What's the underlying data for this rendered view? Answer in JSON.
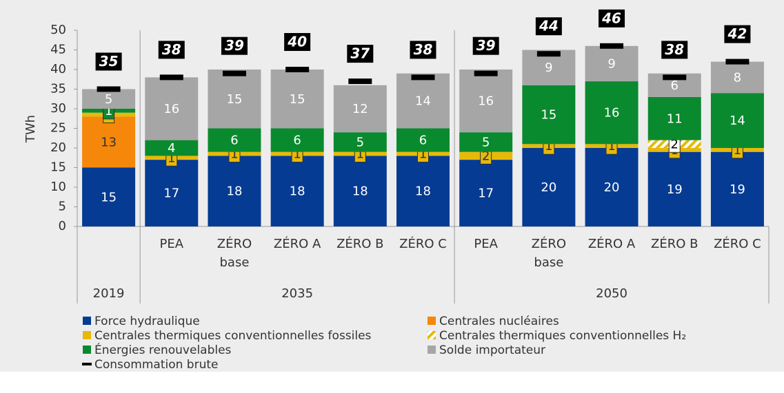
{
  "chart_data": {
    "type": "stacked_bar",
    "y_label": "TWh",
    "ylim": [
      0,
      50
    ],
    "yticks": [
      0,
      5,
      10,
      15,
      20,
      25,
      30,
      35,
      40,
      45,
      50
    ],
    "groups": [
      {
        "name": "2019",
        "categories": [
          null
        ]
      },
      {
        "name": "2035",
        "categories": [
          "PEA",
          "ZÉRO\nbase",
          "ZÉRO A",
          "ZÉRO B",
          "ZÉRO C"
        ]
      },
      {
        "name": "2050",
        "categories": [
          "PEA",
          "ZÉRO\nbase",
          "ZÉRO A",
          "ZÉRO B",
          "ZÉRO C"
        ]
      }
    ],
    "series": [
      {
        "name": "Force hydraulique",
        "color": "#053b93",
        "label_color": "#ffffff",
        "values": [
          15,
          17,
          18,
          18,
          18,
          18,
          17,
          20,
          20,
          19,
          19
        ]
      },
      {
        "name": "Centrales nucléaires",
        "color": "#f5870a",
        "label_color": "#333333",
        "values": [
          13,
          null,
          null,
          null,
          null,
          null,
          null,
          null,
          null,
          null,
          null
        ]
      },
      {
        "name": "Centrales thermiques conventionnelles fossiles",
        "color": "#e6b90a",
        "label_color": "#333333",
        "values": [
          1,
          1,
          1,
          1,
          1,
          1,
          2,
          1,
          1,
          1,
          1
        ]
      },
      {
        "name": "Centrales thermiques conventionnelles H₂",
        "color": "hatch",
        "label_color": "#000000",
        "values": [
          null,
          null,
          null,
          null,
          null,
          null,
          null,
          null,
          null,
          2,
          null
        ]
      },
      {
        "name": "Énergies renouvelables",
        "color": "#0a8a2e",
        "label_color": "#ffffff",
        "values": [
          1,
          4,
          6,
          6,
          5,
          6,
          5,
          15,
          16,
          11,
          14
        ]
      },
      {
        "name": "Solde importateur",
        "color": "#a6a6a6",
        "label_color": "#ffffff",
        "values": [
          5,
          16,
          15,
          15,
          12,
          14,
          16,
          9,
          9,
          6,
          8
        ]
      }
    ],
    "consumption": {
      "name": "Consommation brute",
      "color": "#000000",
      "values": [
        35,
        38,
        39,
        40,
        37,
        38,
        39,
        44,
        46,
        38,
        42
      ]
    }
  }
}
